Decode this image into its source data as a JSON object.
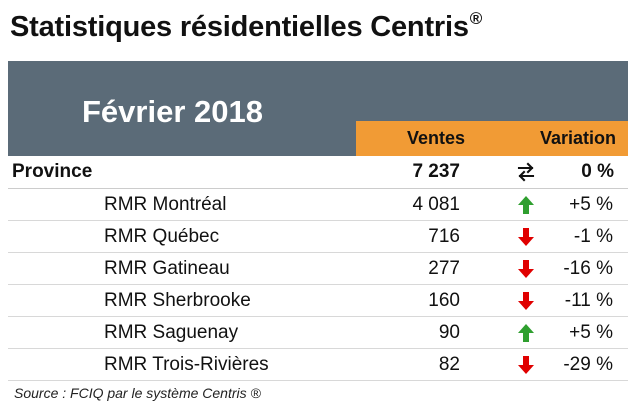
{
  "title": {
    "text": "Statistiques résidentielles Centris",
    "registered_mark": "®"
  },
  "header": {
    "period": "Février 2018",
    "columns": {
      "sales": "Ventes",
      "variation": "Variation"
    },
    "colors": {
      "band": "#5b6b78",
      "column_header": "#f19b35"
    }
  },
  "rows": [
    {
      "name": "Province",
      "sales": "7 237",
      "variation": "0 %",
      "trend": "stable",
      "icon": "stable-exchange-icon"
    },
    {
      "name": "RMR Montréal",
      "sales": "4 081",
      "variation": "+5 %",
      "trend": "up",
      "icon": "green-up-arrow-icon"
    },
    {
      "name": "RMR Québec",
      "sales": "716",
      "variation": "-1 %",
      "trend": "down",
      "icon": "red-down-arrow-icon"
    },
    {
      "name": "RMR Gatineau",
      "sales": "277",
      "variation": "-16 %",
      "trend": "down",
      "icon": "red-down-arrow-icon"
    },
    {
      "name": "RMR Sherbrooke",
      "sales": "160",
      "variation": "-11 %",
      "trend": "down",
      "icon": "red-down-arrow-icon"
    },
    {
      "name": "RMR Saguenay",
      "sales": "90",
      "variation": "+5 %",
      "trend": "up",
      "icon": "green-up-arrow-icon"
    },
    {
      "name": "RMR Trois-Rivières",
      "sales": "82",
      "variation": "-29 %",
      "trend": "down",
      "icon": "red-down-arrow-icon"
    }
  ],
  "source": "Source : FCIQ par le système Centris ®",
  "colors": {
    "up": "#2f9f2f",
    "down": "#e00000",
    "stable": "#111111"
  }
}
